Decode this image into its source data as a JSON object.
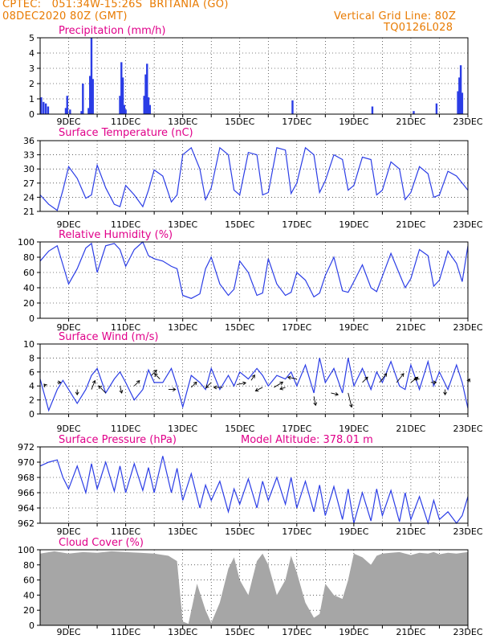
{
  "header": {
    "line1_left": "CPTEC:   051:34W-15:26S  BRITANIA (GO)",
    "line2_left": "08DEC2020 80Z (GMT)",
    "line1_right": "Vertical Grid Line: 80Z",
    "line2_right": "TQ0126L028"
  },
  "colors": {
    "accent": "#e87a00",
    "title": "#e0008a",
    "series": "#2b3de6",
    "cloud": "#a6a6a6",
    "grid": "#000000"
  },
  "x_ticks": [
    "9DEC",
    "11DEC",
    "13DEC",
    "15DEC",
    "17DEC",
    "19DEC",
    "21DEC",
    "23DEC"
  ],
  "chart_data": [
    {
      "type": "bar",
      "title": "Precipitation (mm/h)",
      "ylim": [
        0,
        5
      ],
      "yticks": [
        0,
        1,
        2,
        3,
        4,
        5
      ],
      "x_range": [
        8.0,
        23.0
      ],
      "x": [
        8.04,
        8.12,
        8.2,
        8.28,
        8.9,
        8.95,
        9.05,
        9.45,
        9.5,
        9.7,
        9.75,
        9.8,
        9.85,
        10.8,
        10.85,
        10.9,
        10.95,
        11.0,
        11.65,
        11.7,
        11.75,
        11.8,
        11.85,
        16.85,
        19.65,
        21.1,
        21.9,
        22.65,
        22.7,
        22.75,
        22.8
      ],
      "values": [
        1.1,
        0.8,
        0.7,
        0.5,
        0.4,
        1.2,
        0.3,
        0.2,
        2.0,
        0.4,
        2.5,
        5.0,
        2.3,
        1.2,
        3.4,
        2.4,
        0.6,
        0.3,
        1.2,
        2.6,
        3.3,
        1.1,
        0.6,
        0.9,
        0.5,
        0.2,
        0.7,
        1.5,
        2.4,
        3.2,
        1.4
      ]
    },
    {
      "type": "line",
      "title": "Surface Temperature (nC)",
      "ylim": [
        21,
        36
      ],
      "yticks": [
        21,
        24,
        27,
        30,
        33,
        36
      ],
      "x": [
        8.0,
        8.3,
        8.6,
        8.8,
        9.0,
        9.3,
        9.6,
        9.8,
        10.0,
        10.3,
        10.6,
        10.8,
        11.0,
        11.3,
        11.6,
        11.8,
        12.0,
        12.3,
        12.6,
        12.8,
        13.0,
        13.3,
        13.6,
        13.8,
        14.0,
        14.3,
        14.6,
        14.8,
        15.0,
        15.3,
        15.6,
        15.8,
        16.0,
        16.3,
        16.6,
        16.8,
        17.0,
        17.3,
        17.6,
        17.8,
        18.0,
        18.3,
        18.6,
        18.8,
        19.0,
        19.3,
        19.6,
        19.8,
        20.0,
        20.3,
        20.6,
        20.8,
        21.0,
        21.3,
        21.6,
        21.8,
        22.0,
        22.3,
        22.6,
        22.8,
        23.0
      ],
      "values": [
        24.5,
        22.5,
        21.2,
        25.5,
        30.5,
        28.0,
        23.8,
        24.5,
        30.8,
        26.0,
        22.5,
        22.0,
        26.5,
        24.5,
        22.0,
        25.5,
        29.8,
        28.5,
        23.0,
        24.5,
        33.0,
        34.5,
        30.0,
        23.5,
        26.0,
        34.5,
        33.0,
        25.5,
        24.5,
        33.5,
        33.0,
        24.5,
        25.0,
        34.5,
        34.0,
        24.8,
        27.0,
        34.5,
        33.0,
        25.0,
        27.5,
        33.0,
        32.0,
        25.5,
        26.5,
        32.5,
        32.0,
        24.5,
        25.5,
        31.5,
        30.0,
        23.5,
        25.0,
        30.5,
        29.0,
        24.0,
        24.5,
        29.5,
        28.5,
        27.0,
        25.5
      ]
    },
    {
      "type": "line",
      "title": "Relative Humidity (%)",
      "ylim": [
        0,
        100
      ],
      "yticks": [
        0,
        20,
        40,
        60,
        80,
        100
      ],
      "x": [
        8.0,
        8.3,
        8.6,
        8.8,
        9.0,
        9.3,
        9.6,
        9.8,
        10.0,
        10.3,
        10.6,
        10.8,
        11.0,
        11.3,
        11.6,
        11.8,
        12.0,
        12.3,
        12.6,
        12.8,
        13.0,
        13.3,
        13.6,
        13.8,
        14.0,
        14.3,
        14.6,
        14.8,
        15.0,
        15.3,
        15.6,
        15.8,
        16.0,
        16.3,
        16.6,
        16.8,
        17.0,
        17.3,
        17.6,
        17.8,
        18.0,
        18.3,
        18.6,
        18.8,
        19.0,
        19.3,
        19.6,
        19.8,
        20.0,
        20.3,
        20.6,
        20.8,
        21.0,
        21.3,
        21.6,
        21.8,
        22.0,
        22.3,
        22.6,
        22.8,
        23.0
      ],
      "values": [
        75,
        88,
        95,
        70,
        45,
        65,
        92,
        98,
        60,
        95,
        98,
        90,
        68,
        90,
        100,
        82,
        78,
        75,
        68,
        65,
        30,
        26,
        32,
        65,
        80,
        45,
        30,
        38,
        75,
        60,
        30,
        33,
        78,
        45,
        30,
        34,
        60,
        50,
        28,
        33,
        56,
        80,
        36,
        34,
        48,
        70,
        40,
        35,
        55,
        85,
        58,
        40,
        52,
        90,
        82,
        42,
        50,
        88,
        72,
        48,
        95
      ]
    },
    {
      "type": "line",
      "title": "Surface Wind (m/s)",
      "ylim": [
        0,
        10
      ],
      "yticks": [
        0,
        2,
        4,
        6,
        8,
        10
      ],
      "x": [
        8.0,
        8.3,
        8.6,
        8.8,
        9.0,
        9.3,
        9.6,
        9.8,
        10.0,
        10.3,
        10.6,
        10.8,
        11.0,
        11.3,
        11.6,
        11.8,
        12.0,
        12.3,
        12.6,
        12.8,
        13.0,
        13.3,
        13.6,
        13.8,
        14.0,
        14.3,
        14.6,
        14.8,
        15.0,
        15.3,
        15.6,
        15.8,
        16.0,
        16.3,
        16.6,
        16.8,
        17.0,
        17.3,
        17.6,
        17.8,
        18.0,
        18.3,
        18.6,
        18.8,
        19.0,
        19.3,
        19.6,
        19.8,
        20.0,
        20.3,
        20.6,
        20.8,
        21.0,
        21.3,
        21.6,
        21.8,
        22.0,
        22.3,
        22.6,
        22.8,
        23.0
      ],
      "values": [
        5.0,
        0.5,
        3.5,
        4.8,
        3.5,
        1.5,
        3.5,
        5.5,
        6.5,
        3.0,
        5.0,
        6.0,
        4.5,
        2.0,
        3.5,
        6.3,
        4.5,
        4.5,
        6.5,
        4.0,
        1.0,
        5.5,
        4.5,
        3.5,
        6.5,
        3.5,
        5.5,
        4.0,
        6.0,
        5.0,
        6.5,
        5.5,
        4.0,
        5.5,
        5.0,
        6.0,
        4.0,
        7.0,
        3.0,
        8.0,
        4.5,
        6.5,
        3.0,
        8.0,
        4.0,
        6.5,
        3.5,
        6.0,
        4.5,
        7.5,
        4.0,
        3.5,
        7.0,
        3.5,
        7.5,
        4.0,
        6.0,
        3.5,
        7.0,
        4.5,
        0.8
      ],
      "vectors": [
        [
          8.2,
          4.0,
          -0.1,
          0.1
        ],
        [
          8.6,
          4.5,
          0.2,
          0.0
        ],
        [
          9.3,
          3.5,
          0.0,
          -0.3
        ],
        [
          9.8,
          3.5,
          0.2,
          0.5
        ],
        [
          10.3,
          3.0,
          -0.4,
          0.4
        ],
        [
          10.8,
          4.0,
          0.1,
          -0.4
        ],
        [
          11.3,
          4.0,
          0.3,
          0.3
        ],
        [
          11.9,
          5.5,
          0.3,
          0.3
        ],
        [
          12.2,
          5.0,
          -0.3,
          0.3
        ],
        [
          12.5,
          3.5,
          0.4,
          0.0
        ],
        [
          13.3,
          3.8,
          0.3,
          0.3
        ],
        [
          14.0,
          4.5,
          -0.3,
          -0.3
        ],
        [
          14.4,
          3.8,
          -0.5,
          0.0
        ],
        [
          14.9,
          4.2,
          0.5,
          0.1
        ],
        [
          15.4,
          4.8,
          0.2,
          0.3
        ],
        [
          15.8,
          3.8,
          -0.4,
          -0.2
        ],
        [
          16.2,
          3.8,
          0.5,
          0.3
        ],
        [
          16.6,
          3.8,
          -0.3,
          -0.1
        ],
        [
          17.0,
          5.0,
          -0.5,
          0.1
        ],
        [
          17.6,
          2.5,
          0.1,
          -0.5
        ],
        [
          18.2,
          3.0,
          0.4,
          -0.1
        ],
        [
          18.8,
          3.0,
          0.2,
          -0.8
        ],
        [
          19.3,
          4.5,
          0.3,
          0.3
        ],
        [
          19.9,
          4.5,
          0.4,
          0.5
        ],
        [
          20.5,
          4.5,
          0.4,
          0.5
        ],
        [
          21.0,
          4.5,
          0.4,
          0.3
        ],
        [
          21.3,
          5.0,
          -0.3,
          0.0
        ],
        [
          21.7,
          4.5,
          0.3,
          0.0
        ],
        [
          22.2,
          3.5,
          0.0,
          -0.3
        ],
        [
          23.0,
          4.5,
          0.1,
          0.2
        ]
      ]
    },
    {
      "type": "line",
      "title": "Surface Pressure (hPa)",
      "annotation": "Model Altitude: 378.01 m",
      "ylim": [
        962,
        972
      ],
      "yticks": [
        962,
        964,
        966,
        968,
        970,
        972
      ],
      "x": [
        8.0,
        8.3,
        8.6,
        8.8,
        9.0,
        9.3,
        9.6,
        9.8,
        10.0,
        10.3,
        10.6,
        10.8,
        11.0,
        11.3,
        11.6,
        11.8,
        12.0,
        12.3,
        12.6,
        12.8,
        13.0,
        13.3,
        13.6,
        13.8,
        14.0,
        14.3,
        14.6,
        14.8,
        15.0,
        15.3,
        15.6,
        15.8,
        16.0,
        16.3,
        16.6,
        16.8,
        17.0,
        17.3,
        17.6,
        17.8,
        18.0,
        18.3,
        18.6,
        18.8,
        19.0,
        19.3,
        19.6,
        19.8,
        20.0,
        20.3,
        20.6,
        20.8,
        21.0,
        21.3,
        21.6,
        21.8,
        22.0,
        22.3,
        22.6,
        22.8,
        23.0
      ],
      "values": [
        969.5,
        970.0,
        970.3,
        968.0,
        966.5,
        969.5,
        966.0,
        969.8,
        966.5,
        970.0,
        966.2,
        969.5,
        966.0,
        969.8,
        966.3,
        969.3,
        966.0,
        970.8,
        966.0,
        969.2,
        965.0,
        968.5,
        964.0,
        967.0,
        965.0,
        967.5,
        963.5,
        966.5,
        964.5,
        967.8,
        964.0,
        967.5,
        965.0,
        968.0,
        964.5,
        968.0,
        964.0,
        967.5,
        963.5,
        967.0,
        963.0,
        966.8,
        962.5,
        966.5,
        962.0,
        966.0,
        962.3,
        966.5,
        963.0,
        966.3,
        962.2,
        966.0,
        962.5,
        965.5,
        962.0,
        965.0,
        962.5,
        963.5,
        962.0,
        963.0,
        965.5
      ]
    },
    {
      "type": "bar",
      "title": "Cloud Cover (%)",
      "ylim": [
        0,
        100
      ],
      "yticks": [
        0,
        20,
        40,
        60,
        80,
        100
      ],
      "x": [
        8.0,
        8.5,
        9.0,
        9.5,
        10.0,
        10.5,
        11.0,
        11.5,
        12.0,
        12.5,
        12.8,
        13.0,
        13.2,
        13.5,
        13.8,
        14.0,
        14.3,
        14.6,
        14.8,
        15.0,
        15.3,
        15.6,
        15.8,
        16.0,
        16.3,
        16.6,
        16.8,
        17.0,
        17.3,
        17.6,
        17.8,
        18.0,
        18.3,
        18.6,
        18.8,
        19.0,
        19.3,
        19.6,
        19.8,
        20.0,
        20.3,
        20.6,
        20.8,
        21.0,
        21.3,
        21.6,
        21.8,
        22.0,
        22.3,
        22.6,
        22.8,
        23.0
      ],
      "values": [
        95,
        98,
        95,
        97,
        96,
        98,
        97,
        96,
        95,
        92,
        85,
        5,
        2,
        55,
        20,
        3,
        30,
        75,
        90,
        60,
        40,
        85,
        95,
        80,
        40,
        60,
        92,
        70,
        30,
        10,
        15,
        55,
        40,
        35,
        60,
        95,
        90,
        80,
        92,
        95,
        96,
        97,
        95,
        93,
        96,
        95,
        97,
        94,
        96,
        95,
        96,
        97
      ]
    }
  ]
}
